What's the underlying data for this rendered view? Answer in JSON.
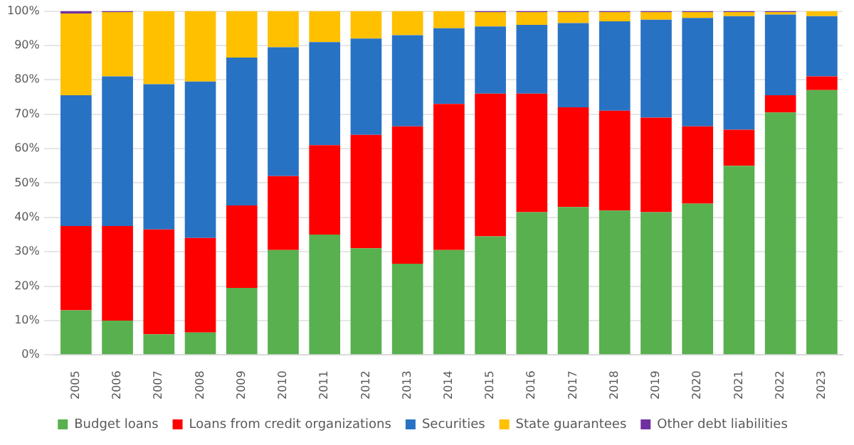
{
  "chart_data": {
    "type": "bar",
    "stacked": true,
    "categories": [
      "2005",
      "2006",
      "2007",
      "2008",
      "2009",
      "2010",
      "2011",
      "2012",
      "2013",
      "2014",
      "2015",
      "2016",
      "2017",
      "2018",
      "2019",
      "2020",
      "2021",
      "2022",
      "2023"
    ],
    "series": [
      {
        "name": "Budget loans",
        "color": "#58b04f",
        "values": [
          13,
          10,
          6,
          6.5,
          19.5,
          30.5,
          35,
          31,
          26.5,
          30.5,
          34.5,
          41.5,
          43,
          42,
          41.5,
          44,
          55,
          70.5,
          77
        ]
      },
      {
        "name": "Loans from credit organizations",
        "color": "#ff0000",
        "values": [
          24.5,
          27.5,
          30.5,
          27.5,
          24,
          21.5,
          26,
          33,
          40,
          42.5,
          41.5,
          34.5,
          29,
          29,
          27.5,
          22.5,
          10.5,
          5,
          4
        ]
      },
      {
        "name": "Securities",
        "color": "#2872c4",
        "values": [
          38,
          43.5,
          42.2,
          45.5,
          43,
          37.5,
          30,
          28,
          26.5,
          22,
          19.5,
          20,
          24.5,
          26,
          28.5,
          31.5,
          33,
          23.5,
          17.5
        ]
      },
      {
        "name": "State guarantees",
        "color": "#ffc000",
        "values": [
          23.8,
          18.7,
          21.3,
          20.5,
          13.5,
          10.5,
          9,
          8,
          7,
          5,
          4.2,
          3.7,
          3.2,
          2.7,
          2.2,
          1.7,
          1.2,
          0.7,
          1.5
        ]
      },
      {
        "name": "Other debt liabilities",
        "color": "#7030a0",
        "values": [
          0.7,
          0.3,
          0,
          0,
          0,
          0,
          0,
          0,
          0,
          0,
          0.3,
          0.3,
          0.3,
          0.3,
          0.3,
          0.3,
          0.3,
          0.3,
          0
        ]
      }
    ],
    "ylim": [
      0,
      100
    ],
    "yticks": [
      {
        "value": 0,
        "label": "0%"
      },
      {
        "value": 10,
        "label": "10%"
      },
      {
        "value": 20,
        "label": "20%"
      },
      {
        "value": 30,
        "label": "30%"
      },
      {
        "value": 40,
        "label": "40%"
      },
      {
        "value": 50,
        "label": "50%"
      },
      {
        "value": 60,
        "label": "60%"
      },
      {
        "value": 70,
        "label": "70%"
      },
      {
        "value": 80,
        "label": "80%"
      },
      {
        "value": 90,
        "label": "90%"
      },
      {
        "value": 100,
        "label": "100%"
      }
    ],
    "grid": "y",
    "legend": "bottom"
  }
}
